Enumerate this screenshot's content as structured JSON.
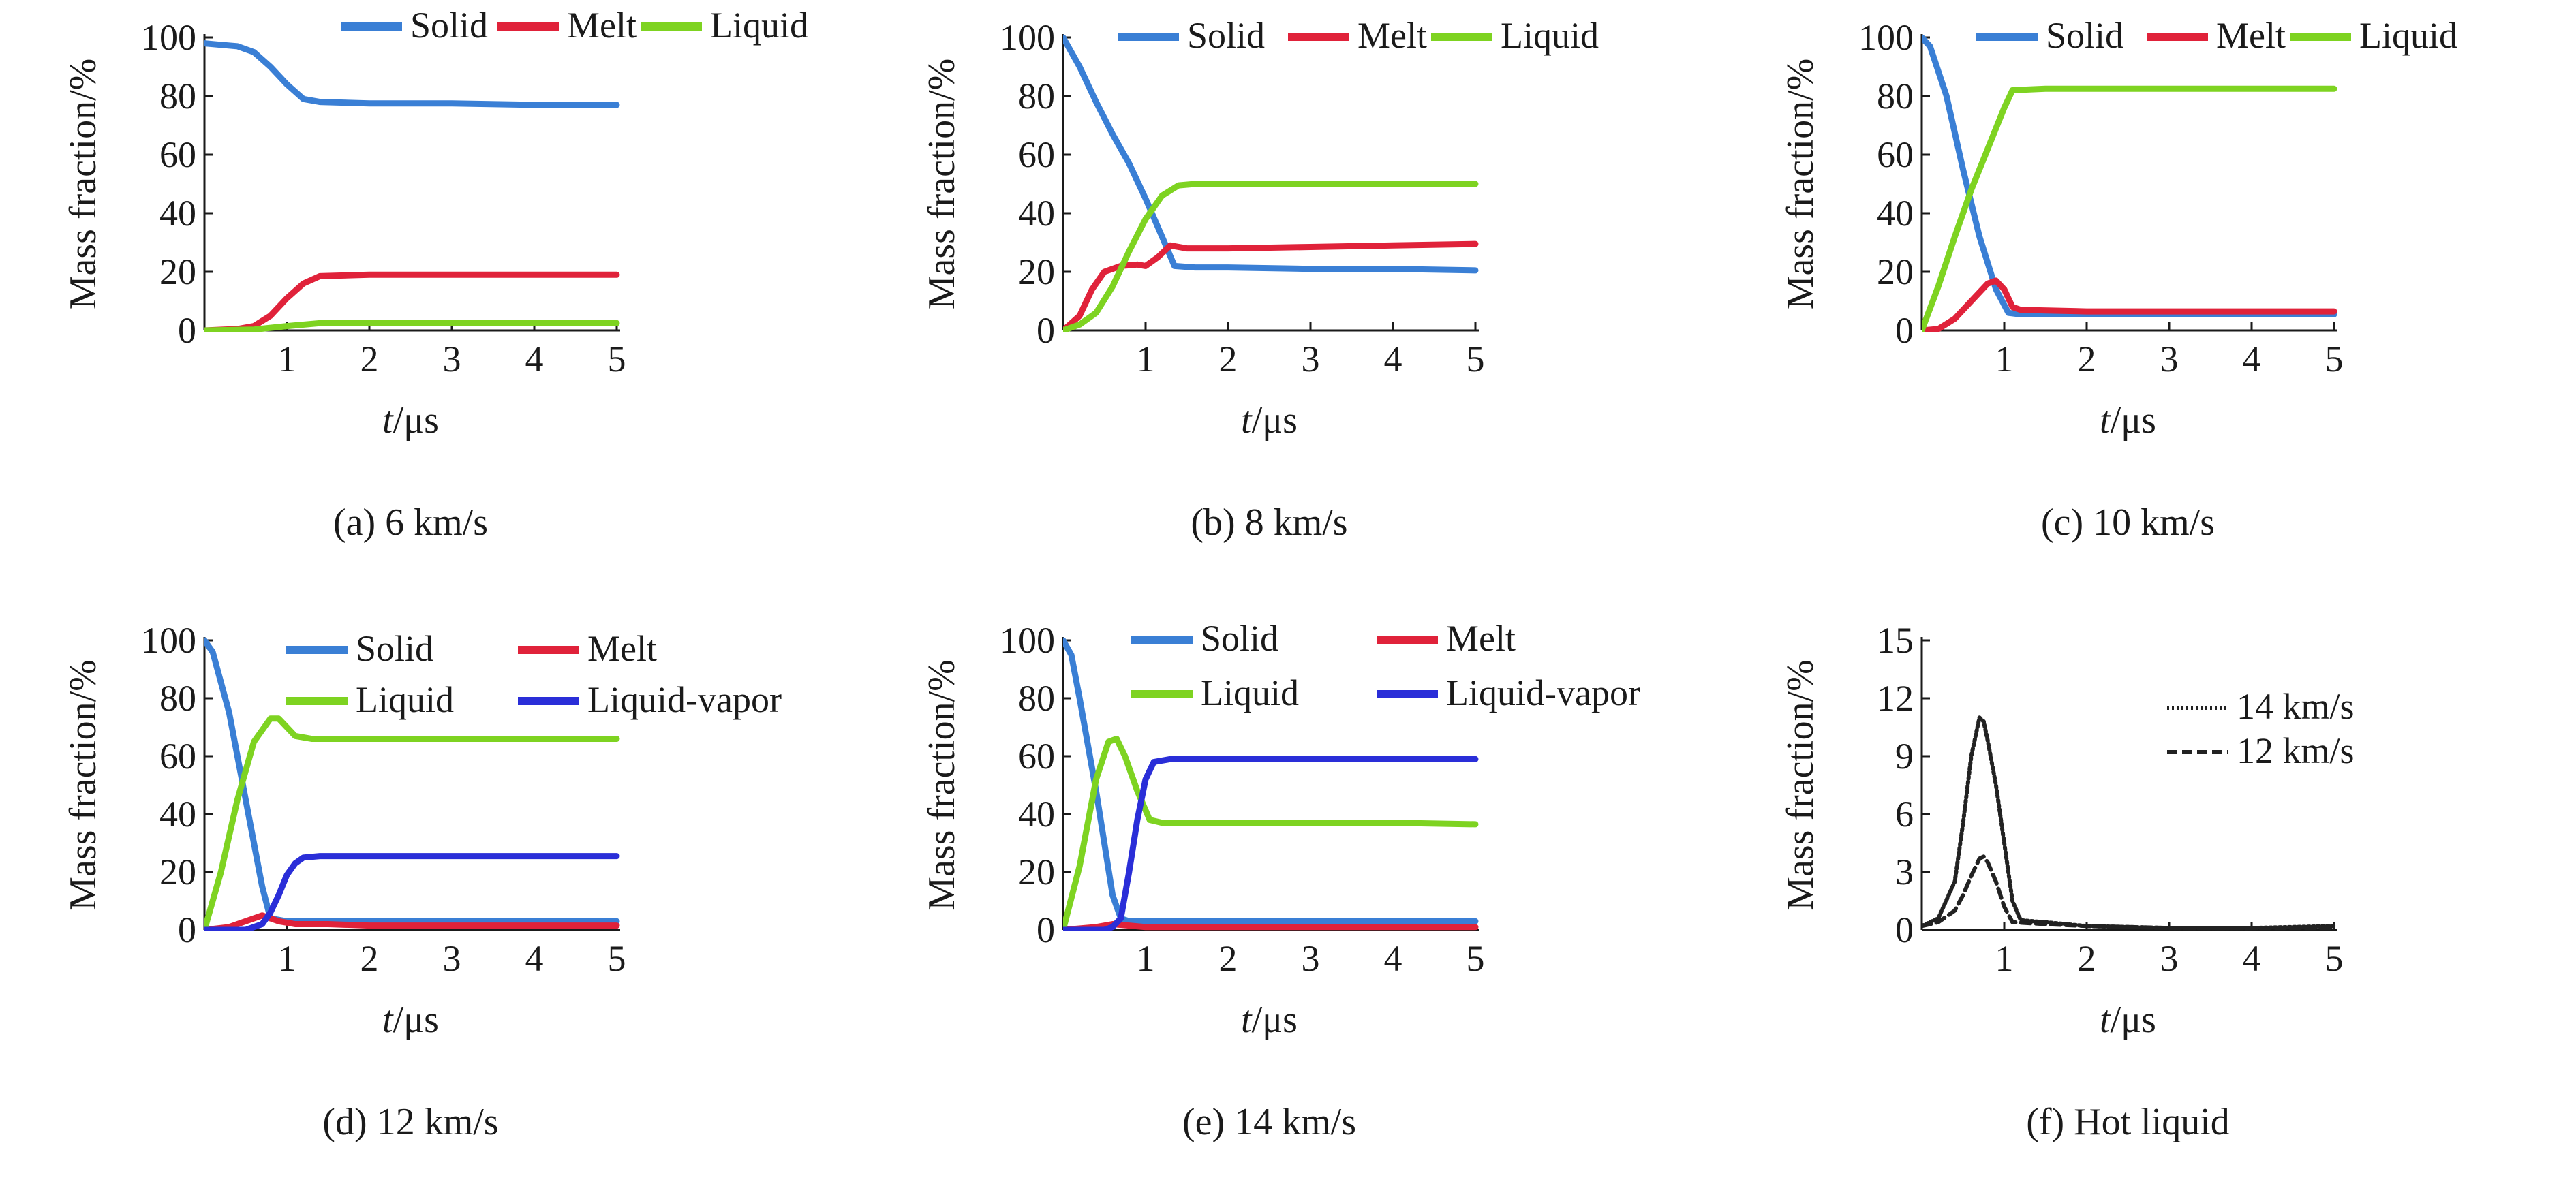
{
  "chart_data": [
    {
      "id": "a",
      "type": "line",
      "caption": "(a) 6 km/s",
      "xlabel": "t/μs",
      "ylabel": "Mass fraction/%",
      "xlim": [
        0,
        5
      ],
      "ylim": [
        0,
        100
      ],
      "xticks": [
        1,
        2,
        3,
        4,
        5
      ],
      "yticks": [
        0,
        20,
        40,
        60,
        80,
        100
      ],
      "legend_columns": 3,
      "series": [
        {
          "name": "Solid",
          "color": "#3a7fd5",
          "style": "solid",
          "x": [
            0,
            0.2,
            0.4,
            0.6,
            0.8,
            1.0,
            1.2,
            1.4,
            2,
            3,
            4,
            5
          ],
          "y": [
            98,
            97.5,
            97,
            95,
            90,
            84,
            79,
            78,
            77.5,
            77.5,
            77,
            77
          ]
        },
        {
          "name": "Melt",
          "color": "#e0223a",
          "style": "solid",
          "x": [
            0,
            0.4,
            0.6,
            0.8,
            1.0,
            1.2,
            1.4,
            2,
            3,
            4,
            5
          ],
          "y": [
            0,
            0.5,
            1.5,
            5,
            11,
            16,
            18.5,
            19,
            19,
            19,
            19
          ]
        },
        {
          "name": "Liquid",
          "color": "#7ed321",
          "style": "solid",
          "x": [
            0,
            0.6,
            1.0,
            1.4,
            2,
            3,
            4,
            5
          ],
          "y": [
            0,
            0.3,
            1.5,
            2.5,
            2.5,
            2.5,
            2.5,
            2.5
          ]
        }
      ]
    },
    {
      "id": "b",
      "type": "line",
      "caption": "(b) 8 km/s",
      "xlabel": "t/μs",
      "ylabel": "Mass fraction/%",
      "xlim": [
        0,
        5
      ],
      "ylim": [
        0,
        100
      ],
      "xticks": [
        1,
        2,
        3,
        4,
        5
      ],
      "yticks": [
        0,
        20,
        40,
        60,
        80,
        100
      ],
      "legend_columns": 3,
      "series": [
        {
          "name": "Solid",
          "color": "#3a7fd5",
          "style": "solid",
          "x": [
            0,
            0.2,
            0.4,
            0.6,
            0.8,
            1.0,
            1.2,
            1.35,
            1.6,
            2,
            3,
            4,
            5
          ],
          "y": [
            100,
            90,
            78,
            67,
            57,
            45,
            32,
            22,
            21.5,
            21.5,
            21,
            21,
            20.5
          ]
        },
        {
          "name": "Melt",
          "color": "#e0223a",
          "style": "solid",
          "x": [
            0,
            0.2,
            0.35,
            0.5,
            0.7,
            0.9,
            1.0,
            1.15,
            1.3,
            1.5,
            2,
            3,
            4,
            5
          ],
          "y": [
            0,
            5,
            14,
            20,
            22,
            22.5,
            22,
            25,
            29,
            28,
            28,
            28.5,
            29,
            29.5
          ]
        },
        {
          "name": "Liquid",
          "color": "#7ed321",
          "style": "solid",
          "x": [
            0,
            0.2,
            0.4,
            0.6,
            0.8,
            1.0,
            1.2,
            1.4,
            1.6,
            2,
            3,
            4,
            5
          ],
          "y": [
            0,
            2,
            6,
            15,
            27,
            38,
            46,
            49.5,
            50,
            50,
            50,
            50,
            50
          ]
        }
      ]
    },
    {
      "id": "c",
      "type": "line",
      "caption": "(c) 10 km/s",
      "xlabel": "t/μs",
      "ylabel": "Mass fraction/%",
      "xlim": [
        0,
        5
      ],
      "ylim": [
        0,
        100
      ],
      "xticks": [
        1,
        2,
        3,
        4,
        5
      ],
      "yticks": [
        0,
        20,
        40,
        60,
        80,
        100
      ],
      "legend_columns": 3,
      "series": [
        {
          "name": "Solid",
          "color": "#3a7fd5",
          "style": "solid",
          "x": [
            0,
            0.1,
            0.3,
            0.5,
            0.7,
            0.9,
            1.05,
            1.2,
            2,
            3,
            4,
            5
          ],
          "y": [
            100,
            97,
            80,
            55,
            32,
            14,
            6,
            5.5,
            5.5,
            5.5,
            5.5,
            5.5
          ]
        },
        {
          "name": "Melt",
          "color": "#e0223a",
          "style": "solid",
          "x": [
            0,
            0.2,
            0.4,
            0.6,
            0.8,
            0.9,
            1.0,
            1.1,
            1.2,
            2,
            3,
            4,
            5
          ],
          "y": [
            0,
            0.5,
            4,
            10,
            16,
            17,
            14,
            8,
            7,
            6.5,
            6.5,
            6.5,
            6.5
          ]
        },
        {
          "name": "Liquid",
          "color": "#7ed321",
          "style": "solid",
          "x": [
            0,
            0.2,
            0.4,
            0.6,
            0.8,
            1.0,
            1.1,
            1.5,
            2,
            3,
            4,
            5
          ],
          "y": [
            0,
            15,
            32,
            48,
            62,
            76,
            82,
            82.5,
            82.5,
            82.5,
            82.5,
            82.5
          ]
        }
      ]
    },
    {
      "id": "d",
      "type": "line",
      "caption": "(d) 12 km/s",
      "xlabel": "t/μs",
      "ylabel": "Mass fraction/%",
      "xlim": [
        0,
        5
      ],
      "ylim": [
        0,
        100
      ],
      "xticks": [
        1,
        2,
        3,
        4,
        5
      ],
      "yticks": [
        0,
        20,
        40,
        60,
        80,
        100
      ],
      "legend_columns": 2,
      "series": [
        {
          "name": "Solid",
          "color": "#3a7fd5",
          "style": "solid",
          "x": [
            0,
            0.1,
            0.3,
            0.5,
            0.7,
            0.8,
            1.0,
            1.5,
            2,
            3,
            4,
            5
          ],
          "y": [
            100,
            96,
            75,
            45,
            15,
            4,
            3,
            3,
            3,
            3,
            3,
            3
          ]
        },
        {
          "name": "Melt",
          "color": "#e0223a",
          "style": "solid",
          "x": [
            0,
            0.3,
            0.5,
            0.7,
            0.9,
            1.1,
            1.5,
            2,
            3,
            4,
            5
          ],
          "y": [
            0,
            1,
            3,
            5,
            3,
            2,
            2,
            1.5,
            1.5,
            1.5,
            1.5
          ]
        },
        {
          "name": "Liquid",
          "color": "#7ed321",
          "style": "solid",
          "x": [
            0,
            0.2,
            0.4,
            0.6,
            0.8,
            0.9,
            1.0,
            1.1,
            1.3,
            2,
            3,
            4,
            5
          ],
          "y": [
            0,
            20,
            45,
            65,
            73,
            73,
            70,
            67,
            66,
            66,
            66,
            66,
            66
          ]
        },
        {
          "name": "Liquid-vapor",
          "color": "#2a2ed8",
          "style": "solid",
          "x": [
            0,
            0.5,
            0.7,
            0.8,
            0.9,
            1.0,
            1.1,
            1.2,
            1.4,
            2,
            3,
            4,
            5
          ],
          "y": [
            0,
            0,
            2,
            6,
            12,
            19,
            23,
            25,
            25.5,
            25.5,
            25.5,
            25.5,
            25.5
          ]
        }
      ]
    },
    {
      "id": "e",
      "type": "line",
      "caption": "(e) 14 km/s",
      "xlabel": "t/μs",
      "ylabel": "Mass fraction/%",
      "xlim": [
        0,
        5
      ],
      "ylim": [
        0,
        100
      ],
      "xticks": [
        1,
        2,
        3,
        4,
        5
      ],
      "yticks": [
        0,
        20,
        40,
        60,
        80,
        100
      ],
      "legend_columns": 2,
      "series": [
        {
          "name": "Solid",
          "color": "#3a7fd5",
          "style": "solid",
          "x": [
            0,
            0.1,
            0.2,
            0.4,
            0.5,
            0.6,
            0.7,
            0.8,
            1.0,
            2,
            3,
            4,
            5
          ],
          "y": [
            100,
            95,
            80,
            48,
            30,
            12,
            4,
            3,
            3,
            3,
            3,
            3,
            3
          ]
        },
        {
          "name": "Melt",
          "color": "#e0223a",
          "style": "solid",
          "x": [
            0,
            0.4,
            0.6,
            0.8,
            1.0,
            2,
            3,
            4,
            5
          ],
          "y": [
            0,
            1,
            2,
            1.5,
            1,
            1,
            1,
            1,
            1
          ]
        },
        {
          "name": "Liquid",
          "color": "#7ed321",
          "style": "solid",
          "x": [
            0,
            0.2,
            0.4,
            0.55,
            0.65,
            0.75,
            0.9,
            1.05,
            1.2,
            2,
            3,
            4,
            5
          ],
          "y": [
            0,
            22,
            52,
            65,
            66,
            60,
            48,
            38,
            37,
            37,
            37,
            37,
            36.5
          ]
        },
        {
          "name": "Liquid-vapor",
          "color": "#2a2ed8",
          "style": "solid",
          "x": [
            0,
            0.5,
            0.6,
            0.7,
            0.8,
            0.9,
            1.0,
            1.1,
            1.3,
            2,
            3,
            4,
            5
          ],
          "y": [
            0,
            0,
            1,
            4,
            20,
            38,
            52,
            58,
            59,
            59,
            59,
            59,
            59
          ]
        }
      ]
    },
    {
      "id": "f",
      "type": "line",
      "caption": "(f) Hot liquid",
      "xlabel": "t/μs",
      "ylabel": "Mass fraction/%",
      "xlim": [
        0,
        5
      ],
      "ylim": [
        0,
        15
      ],
      "xticks": [
        1,
        2,
        3,
        4,
        5
      ],
      "yticks": [
        0,
        3,
        6,
        9,
        12,
        15
      ],
      "legend_columns": 1,
      "series": [
        {
          "name": "14 km/s",
          "color": "#222222",
          "style": "dotted",
          "x": [
            0,
            0.2,
            0.4,
            0.5,
            0.6,
            0.7,
            0.75,
            0.8,
            0.9,
            1.0,
            1.1,
            1.2,
            1.5,
            2,
            3,
            4,
            5
          ],
          "y": [
            0.2,
            0.6,
            2.5,
            5.5,
            9,
            11,
            10.8,
            9.8,
            7.5,
            4.5,
            1.5,
            0.5,
            0.4,
            0.2,
            0.1,
            0.1,
            0.2
          ]
        },
        {
          "name": "12 km/s",
          "color": "#222222",
          "style": "dashed",
          "x": [
            0,
            0.2,
            0.4,
            0.5,
            0.6,
            0.7,
            0.75,
            0.8,
            0.9,
            1.0,
            1.1,
            1.5,
            2,
            3,
            4,
            5
          ],
          "y": [
            0.2,
            0.4,
            1.0,
            1.8,
            2.8,
            3.7,
            3.8,
            3.5,
            2.5,
            1.2,
            0.4,
            0.3,
            0.2,
            0.1,
            0.1,
            0.1
          ]
        }
      ]
    }
  ]
}
